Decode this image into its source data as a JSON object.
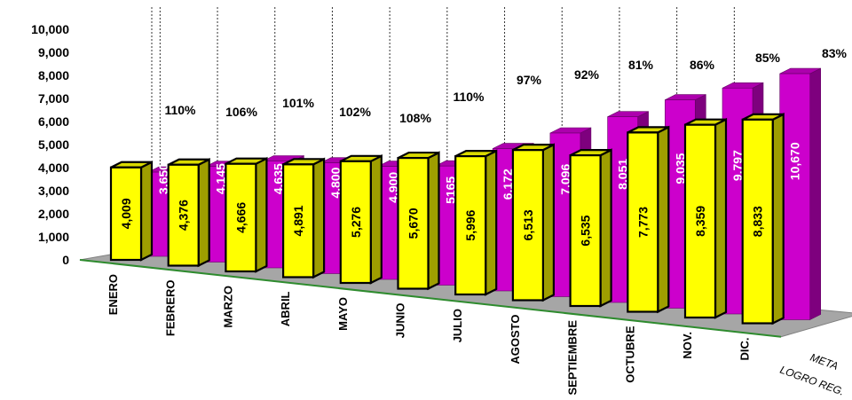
{
  "chart_data": {
    "type": "bar",
    "categories": [
      "ENERO",
      "FEBRERO",
      "MARZO",
      "ABRIL",
      "MAYO",
      "JUNIO",
      "JULIO",
      "AGOSTO",
      "SEPTIEMBRE",
      "OCTUBRE",
      "NOV.",
      "DIC."
    ],
    "series": [
      {
        "name": "META",
        "color": "#cc00cc",
        "values": [
          3650,
          4145,
          4635,
          4800,
          4900,
          5165,
          6172,
          7096,
          8051,
          9035,
          9797,
          10670
        ],
        "value_labels": [
          "3,650",
          "4,145",
          "4,635",
          "4,800",
          "4,900",
          "5165",
          "6,172",
          "7,096",
          "8,051",
          "9,035",
          "9,797",
          "10,670"
        ]
      },
      {
        "name": "LOGRO REG.",
        "color": "#ffff00",
        "values": [
          4009,
          4376,
          4666,
          4891,
          5276,
          5670,
          5996,
          6513,
          6535,
          7773,
          8359,
          8833
        ],
        "value_labels": [
          "4,009",
          "4,376",
          "4,666",
          "4,891",
          "5,276",
          "5,670",
          "5,996",
          "6,513",
          "6,535",
          "7,773",
          "8,359",
          "8,833"
        ]
      }
    ],
    "percentages": [
      "110%",
      "106%",
      "101%",
      "102%",
      "108%",
      "110%",
      "97%",
      "92%",
      "81%",
      "86%",
      "85%",
      "83%"
    ],
    "yticks": [
      "0",
      "1,000",
      "2,000",
      "3,000",
      "4,000",
      "5,000",
      "6,000",
      "7,000",
      "8,000",
      "9,000",
      "10,000"
    ],
    "ylim": [
      0,
      10000
    ],
    "grid": "dotted vertical separators",
    "title": "",
    "xlabel": "",
    "ylabel": ""
  }
}
